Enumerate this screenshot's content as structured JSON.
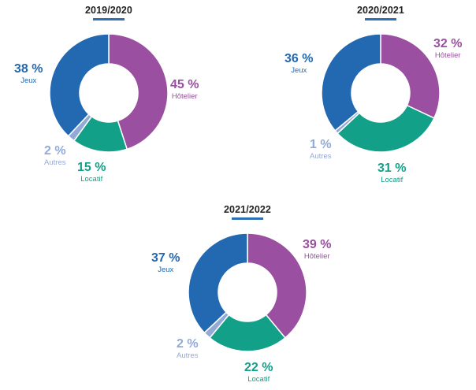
{
  "colors": {
    "jeux": "#2369b1",
    "hotelier": "#9a4fa0",
    "locatif": "#13a089",
    "autres": "#93a9d6"
  },
  "chart_data": [
    {
      "type": "pie",
      "title": "2019/2020",
      "categories": [
        "Hôtelier",
        "Locatif",
        "Autres",
        "Jeux"
      ],
      "values": [
        45,
        15,
        2,
        38
      ],
      "labels": [
        "45 %",
        "15 %",
        "2 %",
        "38 %"
      ]
    },
    {
      "type": "pie",
      "title": "2020/2021",
      "categories": [
        "Hôtelier",
        "Locatif",
        "Autres",
        "Jeux"
      ],
      "values": [
        32,
        31,
        1,
        36
      ],
      "labels": [
        "32 %",
        "31 %",
        "1 %",
        "36 %"
      ]
    },
    {
      "type": "pie",
      "title": "2021/2022",
      "categories": [
        "Hôtelier",
        "Locatif",
        "Autres",
        "Jeux"
      ],
      "values": [
        39,
        22,
        2,
        37
      ],
      "labels": [
        "39 %",
        "22 %",
        "2 %",
        "37 %"
      ]
    }
  ]
}
